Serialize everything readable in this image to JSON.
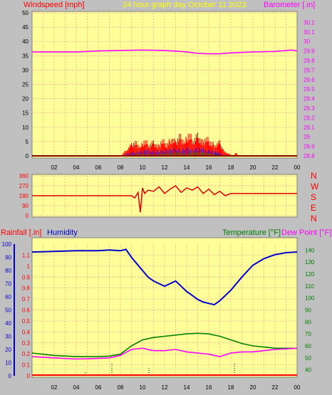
{
  "header": {
    "left": "Windspeed [mph]",
    "center": "24 hour graph day   October 11 2023",
    "right": "Barometer [.in]"
  },
  "panel2": {
    "directions": [
      "N",
      "W",
      "S",
      "E",
      "N"
    ]
  },
  "panel3": {
    "rain_label": "Rainfall [.in]",
    "hum_label": "Humidity",
    "temp_label": "Temperature [°F]",
    "dew_label": "Dew Point [°F]"
  },
  "colors": {
    "background": "#c0c0c0",
    "plot": "#ffff99",
    "grid": "#ff9999",
    "windspeed": "#ff0000",
    "gust_blue": "#0000ff",
    "gust_green": "#008000",
    "barometer": "#ff00ff",
    "direction": "#dd0000",
    "humidity": "#0000cc",
    "temperature": "#008000",
    "dewpoint": "#ff00ff",
    "header_center": "#ffff00"
  },
  "chart_data": [
    {
      "type": "line",
      "title": "24 hour graph day   October 11 2023",
      "x_ticks": [
        "02",
        "04",
        "06",
        "08",
        "10",
        "12",
        "14",
        "16",
        "18",
        "20",
        "22",
        "00"
      ],
      "x_range": [
        0,
        24
      ],
      "y_left": {
        "label": "Windspeed [mph]",
        "range": [
          0,
          50
        ],
        "ticks": [
          "0",
          "5",
          "10",
          "15",
          "20",
          "25",
          "30",
          "35",
          "40",
          "45",
          "50"
        ]
      },
      "y_right": {
        "label": "Barometer [.in]",
        "range": [
          28.8,
          30.3
        ],
        "ticks": [
          "28.8",
          "28.9",
          "29",
          "29.1",
          "29.2",
          "29.3",
          "29.4",
          "29.5",
          "29.6",
          "29.7",
          "29.8",
          "29.9",
          "30",
          "30.1",
          "30.2"
        ]
      },
      "series": [
        {
          "name": "Barometer [.in]",
          "axis": "right",
          "x": [
            0,
            2,
            4,
            6,
            8,
            10,
            12,
            14,
            15,
            16,
            17,
            18,
            20,
            22,
            23,
            23.5,
            24
          ],
          "y": [
            29.89,
            29.89,
            29.89,
            29.9,
            29.905,
            29.91,
            29.905,
            29.89,
            29.875,
            29.87,
            29.87,
            29.88,
            29.89,
            29.895,
            29.905,
            29.91,
            29.9
          ]
        },
        {
          "name": "Windspeed [mph]",
          "axis": "left",
          "x": [
            8.2,
            8.6,
            9.0,
            9.4,
            9.8,
            10.2,
            10.6,
            11.0,
            11.4,
            11.8,
            12.2,
            12.6,
            13.0,
            13.4,
            13.8,
            14.2,
            14.6,
            15.0,
            15.4,
            15.8,
            16.2,
            16.6,
            17.0,
            17.4,
            17.8,
            18.2,
            18.6
          ],
          "y": [
            1,
            3,
            5,
            6,
            4,
            7,
            5,
            6,
            4,
            7,
            5,
            8,
            6,
            9,
            6,
            10,
            7,
            9,
            6,
            8,
            6,
            5,
            6,
            2,
            1,
            0,
            2
          ]
        },
        {
          "name": "Wind average",
          "axis": "left",
          "x": [
            8.5,
            9.5,
            10.5,
            11.5,
            12.5,
            13.5,
            14.5,
            15.5,
            16.5,
            17.2
          ],
          "y": [
            1,
            2,
            2.5,
            2,
            3,
            3,
            3.5,
            3,
            2,
            1
          ]
        },
        {
          "name": "Wind low",
          "axis": "left",
          "x": [
            9,
            10,
            11,
            12,
            13,
            14,
            15,
            16,
            17
          ],
          "y": [
            0.5,
            1,
            0.5,
            1,
            1.5,
            1,
            2,
            1,
            0.5
          ]
        }
      ]
    },
    {
      "type": "line",
      "y_ticks": [
        "0",
        "90",
        "180",
        "270",
        "360"
      ],
      "y_range": [
        0,
        360
      ],
      "series": [
        {
          "name": "Wind direction",
          "x": [
            0,
            2,
            4,
            6,
            8,
            9,
            9.3,
            9.6,
            9.8,
            10,
            10.2,
            10.5,
            11,
            11.5,
            12,
            12.5,
            13,
            13.5,
            14,
            14.5,
            15,
            15.5,
            16,
            16.5,
            17,
            17.5,
            18,
            19,
            20,
            22,
            24
          ],
          "y": [
            180,
            180,
            180,
            180,
            180,
            180,
            160,
            210,
            30,
            250,
            200,
            230,
            220,
            260,
            200,
            240,
            270,
            210,
            250,
            230,
            260,
            200,
            240,
            190,
            220,
            180,
            200,
            200,
            200,
            200,
            200
          ]
        }
      ]
    },
    {
      "type": "line",
      "x_ticks": [
        "02",
        "04",
        "06",
        "08",
        "10",
        "12",
        "14",
        "16",
        "18",
        "20",
        "22",
        "00"
      ],
      "x_range": [
        0,
        24
      ],
      "y_left_outer": {
        "label": "Rainfall [.in]",
        "range": [
          0,
          1.2
        ],
        "ticks": [
          "0",
          "0.1",
          "0.2",
          "0.3",
          "0.4",
          "0.5",
          "0.6",
          "0.7",
          "0.8",
          "0.9",
          "1",
          "1.1"
        ]
      },
      "y_left_inner": {
        "label": "Humidity",
        "range": [
          0,
          100
        ],
        "ticks": [
          "0",
          "10",
          "20",
          "30",
          "40",
          "50",
          "60",
          "70",
          "80",
          "90",
          "100"
        ]
      },
      "y_right": {
        "label": "Temperature [°F]",
        "range": [
          35,
          145
        ],
        "ticks": [
          "40",
          "50",
          "60",
          "70",
          "80",
          "90",
          "100",
          "110",
          "120",
          "130",
          "140"
        ]
      },
      "series": [
        {
          "name": "Humidity",
          "x": [
            0,
            2,
            4,
            6,
            7,
            8,
            8.5,
            9,
            9.5,
            10,
            10.5,
            11,
            11.5,
            12,
            12.5,
            13,
            13.5,
            14,
            14.5,
            15,
            15.5,
            16,
            16.5,
            17,
            18,
            19,
            20,
            21,
            22,
            23,
            24
          ],
          "y": [
            94,
            94.5,
            95,
            95,
            95.5,
            95,
            96,
            90,
            85,
            80,
            75,
            72,
            70,
            68,
            70,
            72,
            68,
            64,
            61,
            58,
            56,
            55,
            54,
            57,
            65,
            75,
            84,
            89,
            92,
            93.5,
            94
          ]
        },
        {
          "name": "Temperature [°F]",
          "x": [
            0,
            2,
            4,
            6,
            7,
            8,
            9,
            10,
            11,
            12,
            13,
            14,
            15,
            16,
            17,
            18,
            19,
            20,
            21,
            22,
            23,
            24
          ],
          "y": [
            54,
            52,
            51,
            51,
            51.5,
            53,
            60,
            65,
            67,
            68,
            69,
            70,
            70.5,
            70,
            68,
            65,
            62,
            60,
            59,
            58,
            58,
            58
          ]
        },
        {
          "name": "Dew Point [°F]",
          "x": [
            0,
            2,
            4,
            6,
            7,
            8,
            9,
            10,
            11,
            12,
            13,
            14,
            15,
            16,
            17,
            18,
            19,
            20,
            21,
            22,
            23,
            24
          ],
          "y": [
            51,
            50,
            49,
            49.5,
            50,
            52,
            57,
            58,
            56,
            56,
            57,
            55,
            54,
            53,
            51,
            54,
            55,
            55,
            56,
            57,
            57.5,
            58
          ]
        },
        {
          "name": "Rainfall [.in]",
          "x": [
            0,
            24
          ],
          "y": [
            0,
            0
          ]
        }
      ]
    }
  ]
}
